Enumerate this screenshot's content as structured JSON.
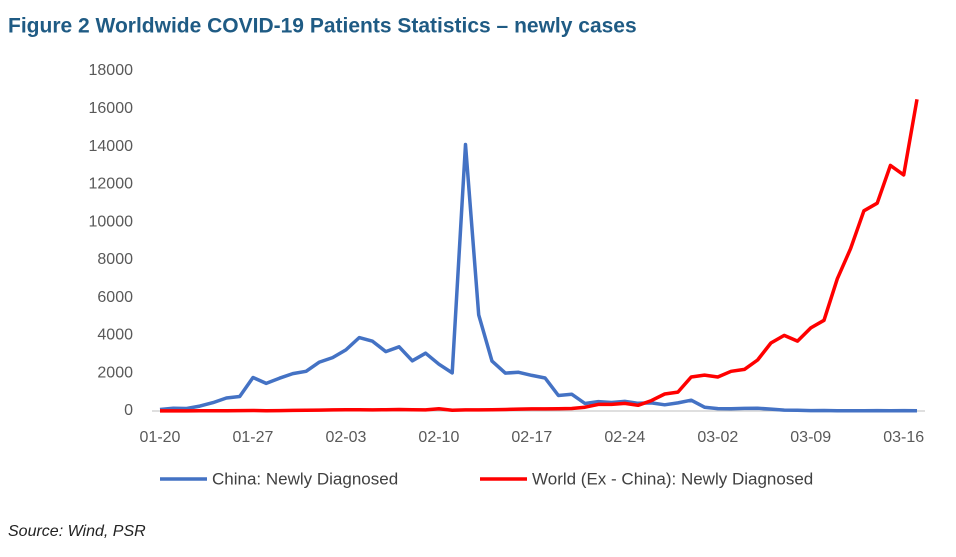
{
  "chart_data": {
    "type": "line",
    "title": "Figure 2 Worldwide COVID-19 Patients Statistics – newly cases",
    "source": "Source: Wind, PSR",
    "categories": [
      "01-20",
      null,
      null,
      null,
      null,
      null,
      null,
      "01-27",
      null,
      null,
      null,
      null,
      null,
      null,
      "02-03",
      null,
      null,
      null,
      null,
      null,
      null,
      "02-10",
      null,
      null,
      null,
      null,
      null,
      null,
      "02-17",
      null,
      null,
      null,
      null,
      null,
      null,
      "02-24",
      null,
      null,
      null,
      null,
      null,
      null,
      "03-02",
      null,
      null,
      null,
      null,
      null,
      null,
      "03-09",
      null,
      null,
      null,
      null,
      null,
      null,
      "03-16",
      null
    ],
    "series": [
      {
        "name": "China: Newly Diagnosed",
        "color": "#4472c4",
        "values": [
          77,
          149,
          131,
          259,
          444,
          688,
          769,
          1771,
          1459,
          1737,
          1982,
          2102,
          2590,
          2829,
          3235,
          3887,
          3694,
          3143,
          3399,
          2656,
          3062,
          2478,
          2015,
          14108,
          5090,
          2641,
          2008,
          2048,
          1886,
          1749,
          820,
          889,
          397,
          500,
          450,
          510,
          410,
          430,
          330,
          430,
          570,
          200,
          125,
          120,
          140,
          145,
          100,
          45,
          40,
          20,
          25,
          15,
          10,
          10,
          20,
          15,
          20,
          10
        ]
      },
      {
        "name": "World (Ex - China): Newly Diagnosed",
        "color": "#ff0000",
        "values": [
          5,
          3,
          5,
          10,
          12,
          15,
          20,
          25,
          15,
          20,
          30,
          40,
          50,
          60,
          65,
          70,
          60,
          70,
          80,
          70,
          60,
          120,
          40,
          60,
          60,
          70,
          80,
          100,
          110,
          110,
          120,
          130,
          200,
          350,
          350,
          400,
          300,
          550,
          900,
          1000,
          1800,
          1900,
          1800,
          2100,
          2200,
          2700,
          3600,
          4000,
          3700,
          4400,
          4800,
          7000,
          8600,
          10600,
          11000,
          13000,
          12500,
          16500
        ]
      }
    ],
    "ylim": [
      0,
      18000
    ],
    "yticks": [
      0,
      2000,
      4000,
      6000,
      8000,
      10000,
      12000,
      14000,
      16000,
      18000
    ],
    "grid": false
  }
}
